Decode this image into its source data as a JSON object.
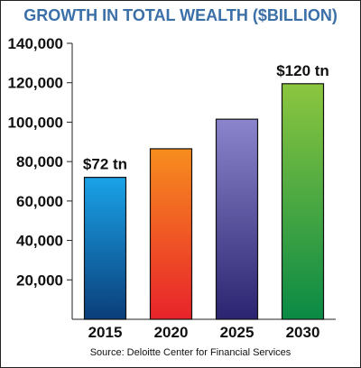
{
  "chart_data": {
    "type": "bar",
    "title": "GROWTH IN TOTAL WEALTH ($BILLION)",
    "categories": [
      "2015",
      "2020",
      "2025",
      "2030"
    ],
    "values": [
      72000,
      86500,
      101500,
      119500
    ],
    "ylim": [
      0,
      140000
    ],
    "y_ticks": [
      20000,
      40000,
      60000,
      80000,
      100000,
      120000,
      140000
    ],
    "y_tick_labels": [
      "20,000",
      "40,000",
      "60,000",
      "80,000",
      "100,000",
      "120,000",
      "140,000"
    ],
    "grid": false,
    "annotations": [
      {
        "category": "2015",
        "text": "$72 tn"
      },
      {
        "category": "2030",
        "text": "$120 tn"
      }
    ],
    "source": "Source: Deloitte Center for Financial Services",
    "bar_gradients": [
      {
        "top": "#1aa3e8",
        "bottom": "#0a3e7a"
      },
      {
        "top": "#f78d1e",
        "bottom": "#e8232b"
      },
      {
        "top": "#8a85cc",
        "bottom": "#2b2470"
      },
      {
        "top": "#8cc63f",
        "bottom": "#0a8a45"
      }
    ]
  }
}
